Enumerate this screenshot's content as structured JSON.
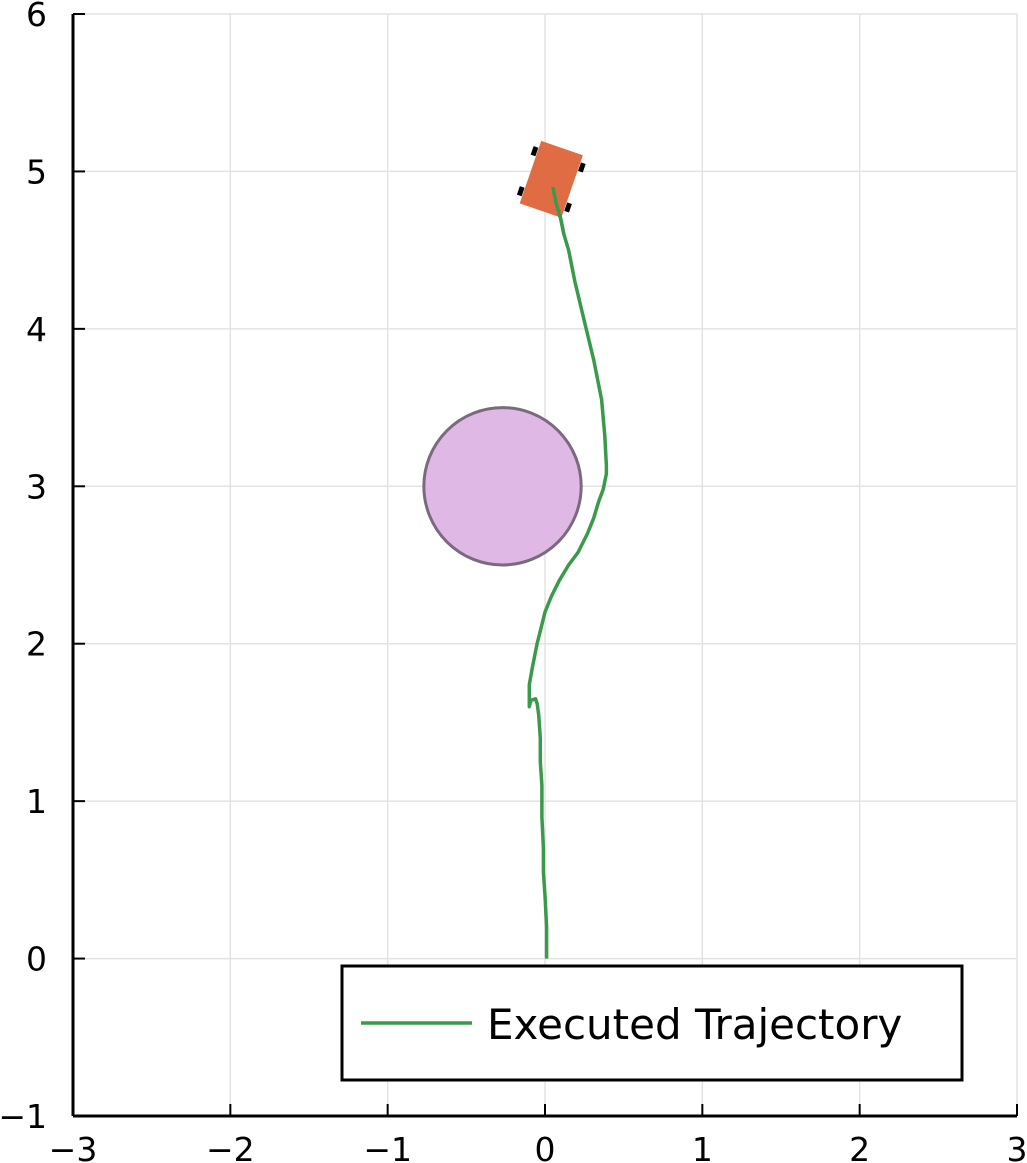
{
  "chart_data": {
    "type": "line",
    "title": "",
    "xlabel": "",
    "ylabel": "",
    "xlim": [
      -3,
      3
    ],
    "ylim": [
      -1,
      6
    ],
    "xticks": [
      -3,
      -2,
      -1,
      0,
      1,
      2,
      3
    ],
    "yticks": [
      -1,
      0,
      1,
      2,
      3,
      4,
      5,
      6
    ],
    "xtick_labels": [
      "−3",
      "−2",
      "−1",
      "0",
      "1",
      "2",
      "3"
    ],
    "ytick_labels": [
      "−1",
      "0",
      "1",
      "2",
      "3",
      "4",
      "5",
      "6"
    ],
    "grid": true,
    "legend_position": "bottom-right",
    "series": [
      {
        "name": "Executed Trajectory",
        "color": "#3a9a4a",
        "x": [
          0.01,
          0.01,
          0.0,
          -0.01,
          -0.01,
          -0.02,
          -0.02,
          -0.03,
          -0.03,
          -0.04,
          -0.05,
          -0.06,
          -0.09,
          -0.1,
          -0.1,
          -0.08,
          -0.05,
          0.0,
          0.04,
          0.09,
          0.15,
          0.21,
          0.27,
          0.31,
          0.34,
          0.37,
          0.39,
          0.39,
          0.38,
          0.36,
          0.31,
          0.25,
          0.19,
          0.15,
          0.12,
          0.1,
          0.07,
          0.05
        ],
        "y": [
          0.0,
          0.2,
          0.4,
          0.55,
          0.7,
          0.9,
          1.1,
          1.25,
          1.4,
          1.55,
          1.62,
          1.65,
          1.64,
          1.6,
          1.74,
          1.85,
          2.0,
          2.2,
          2.3,
          2.4,
          2.5,
          2.58,
          2.7,
          2.8,
          2.9,
          2.98,
          3.08,
          3.13,
          3.32,
          3.55,
          3.8,
          4.05,
          4.3,
          4.5,
          4.6,
          4.7,
          4.8,
          4.9
        ]
      }
    ],
    "obstacle": {
      "shape": "circle",
      "center": [
        -0.27,
        3.0
      ],
      "radius": 0.5,
      "fill": "#dfb8e6",
      "stroke": "#7a6a7e"
    },
    "vehicle": {
      "center": [
        0.04,
        4.95
      ],
      "heading_deg": 71,
      "length": 0.42,
      "width": 0.28,
      "body_color": "#e06c44",
      "wheel_color": "#000000"
    }
  }
}
